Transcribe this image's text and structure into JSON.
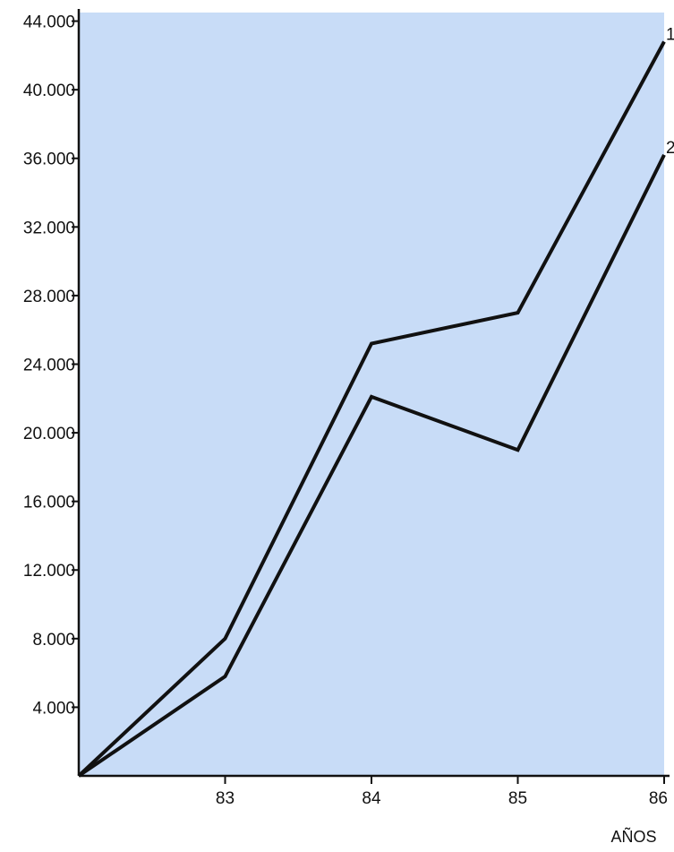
{
  "chart_data": {
    "type": "line",
    "title": "",
    "xlabel": "AÑOS",
    "ylabel": "",
    "x": [
      82,
      83,
      84,
      85,
      86
    ],
    "x_tick_labels": [
      "83",
      "84",
      "85",
      "86"
    ],
    "y_ticks": [
      4000,
      8000,
      12000,
      16000,
      20000,
      24000,
      28000,
      32000,
      36000,
      40000,
      44000
    ],
    "y_tick_labels": [
      "4.000",
      "8.000",
      "12.000",
      "16.000",
      "20.000",
      "24.000",
      "28.000",
      "32.000",
      "36.000",
      "40.000",
      "44.000"
    ],
    "xlim": [
      82,
      86
    ],
    "ylim": [
      0,
      44500
    ],
    "grid": false,
    "series": [
      {
        "tag": "1",
        "values": [
          0,
          8000,
          25200,
          27000,
          42800
        ]
      },
      {
        "tag": "2",
        "values": [
          0,
          5800,
          22100,
          19000,
          36200
        ]
      }
    ],
    "colors": {
      "plot_background": "#c8dcf7",
      "line": "#111111"
    }
  }
}
